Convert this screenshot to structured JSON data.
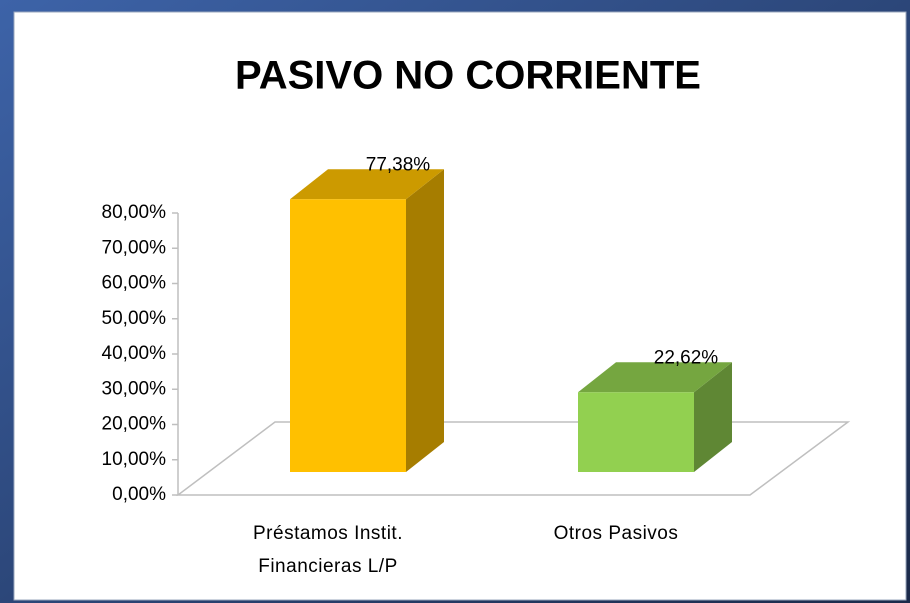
{
  "chart_data": {
    "type": "bar3d",
    "title": "PASIVO NO CORRIENTE",
    "categories": [
      "Préstamos Instit. Financieras L/P",
      "Otros Pasivos"
    ],
    "series": [
      {
        "name": "Pasivo no corriente",
        "colors": [
          "#FFC000",
          "#92D050"
        ],
        "values": [
          77.38,
          22.62
        ],
        "value_labels": [
          "77,38%",
          "22,62%"
        ]
      }
    ],
    "ylim": [
      0,
      80
    ],
    "yticks": [
      {
        "value": 0,
        "label": "0,00%"
      },
      {
        "value": 10,
        "label": "10,00%"
      },
      {
        "value": 20,
        "label": "20,00%"
      },
      {
        "value": 30,
        "label": "30,00%"
      },
      {
        "value": 40,
        "label": "40,00%"
      },
      {
        "value": 50,
        "label": "50,00%"
      },
      {
        "value": 60,
        "label": "60,00%"
      },
      {
        "value": 70,
        "label": "70,00%"
      },
      {
        "value": 80,
        "label": "80,00%"
      }
    ]
  }
}
